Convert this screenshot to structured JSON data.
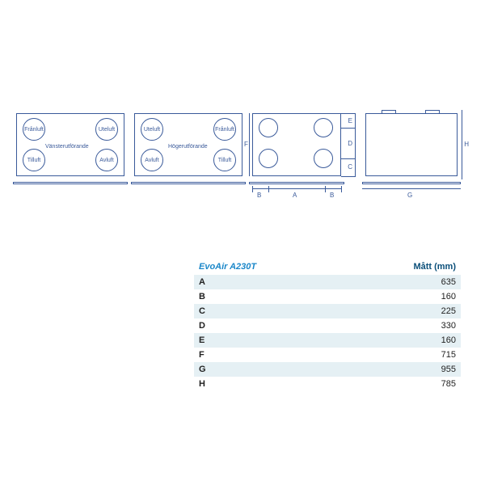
{
  "colors": {
    "stroke": "#3a5a9a",
    "accent": "#1b87c9",
    "heading": "#0b4f7a",
    "row_alt_bg": "#e5f0f4",
    "row_bg": "#ffffff",
    "text": "#222222"
  },
  "diagrams": {
    "left_config": {
      "caption": "Vänsterutförande",
      "ports": {
        "top_left": "Frånluft",
        "top_right": "Uteluft",
        "bottom_left": "Tilluft",
        "bottom_right": "Avluft"
      }
    },
    "right_config": {
      "caption": "Högerutförande",
      "ports": {
        "top_left": "Uteluft",
        "top_right": "Frånluft",
        "bottom_left": "Avluft",
        "bottom_right": "Tilluft"
      }
    },
    "top_view_dims": {
      "A": "A",
      "B": "B",
      "C": "C",
      "D": "D",
      "E": "E",
      "F": "F"
    },
    "side_view_dims": {
      "G": "G",
      "H": "H"
    }
  },
  "table": {
    "title": "EvoAir A230T",
    "col_header": "Mått (mm)",
    "rows": [
      {
        "k": "A",
        "v": "635"
      },
      {
        "k": "B",
        "v": "160"
      },
      {
        "k": "C",
        "v": "225"
      },
      {
        "k": "D",
        "v": "330"
      },
      {
        "k": "E",
        "v": "160"
      },
      {
        "k": "F",
        "v": "715"
      },
      {
        "k": "G",
        "v": "955"
      },
      {
        "k": "H",
        "v": "785"
      }
    ]
  }
}
